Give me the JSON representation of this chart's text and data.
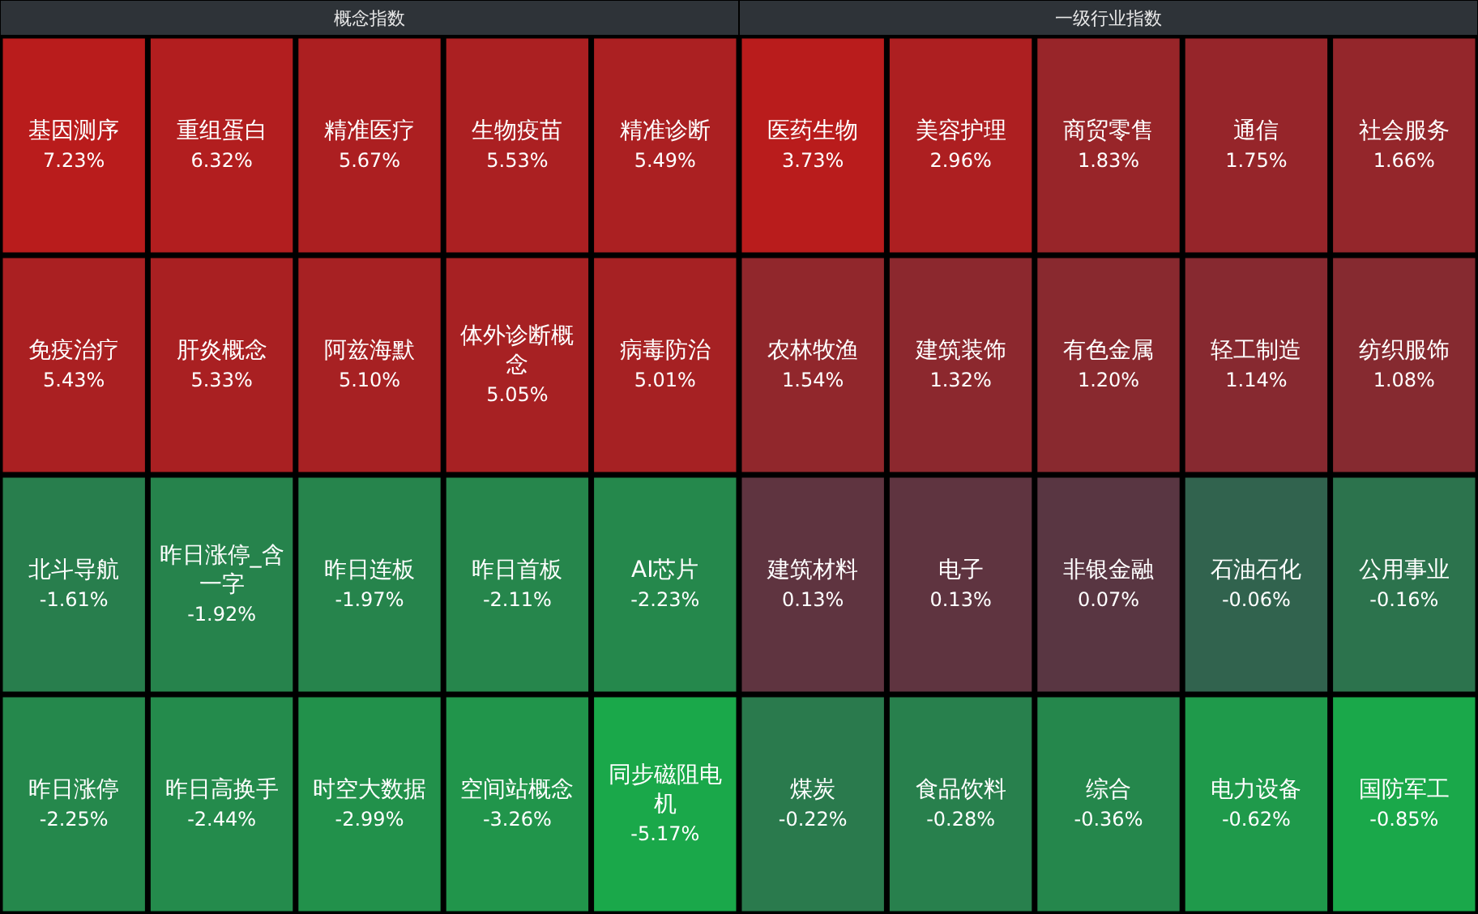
{
  "chart_data": [
    {
      "type": "other",
      "title": "概念指数",
      "categories": [
        "基因测序",
        "重组蛋白",
        "精准医疗",
        "生物疫苗",
        "精准诊断",
        "免疫治疗",
        "肝炎概念",
        "阿兹海默",
        "体外诊断概念",
        "病毒防治",
        "北斗导航",
        "昨日涨停_含一字",
        "昨日连板",
        "昨日首板",
        "AI芯片",
        "昨日涨停",
        "昨日高换手",
        "时空大数据",
        "空间站概念",
        "同步磁阻电机"
      ],
      "values": [
        7.23,
        6.32,
        5.67,
        5.53,
        5.49,
        5.43,
        5.33,
        5.1,
        5.05,
        5.01,
        -1.61,
        -1.92,
        -1.97,
        -2.11,
        -2.23,
        -2.25,
        -2.44,
        -2.99,
        -3.26,
        -5.17
      ],
      "value_labels": [
        "7.23%",
        "6.32%",
        "5.67%",
        "5.53%",
        "5.49%",
        "5.43%",
        "5.33%",
        "5.10%",
        "5.05%",
        "5.01%",
        "-1.61%",
        "-1.92%",
        "-1.97%",
        "-2.11%",
        "-2.23%",
        "-2.25%",
        "-2.44%",
        "-2.99%",
        "-3.26%",
        "-5.17%"
      ]
    },
    {
      "type": "other",
      "title": "一级行业指数",
      "categories": [
        "医药生物",
        "美容护理",
        "商贸零售",
        "通信",
        "社会服务",
        "农林牧渔",
        "建筑装饰",
        "有色金属",
        "轻工制造",
        "纺织服饰",
        "建筑材料",
        "电子",
        "非银金融",
        "石油石化",
        "公用事业",
        "煤炭",
        "食品饮料",
        "综合",
        "电力设备",
        "国防军工"
      ],
      "values": [
        3.73,
        2.96,
        1.83,
        1.75,
        1.66,
        1.54,
        1.32,
        1.2,
        1.14,
        1.08,
        0.13,
        0.13,
        0.07,
        -0.06,
        -0.16,
        -0.22,
        -0.28,
        -0.36,
        -0.62,
        -0.85
      ],
      "value_labels": [
        "3.73%",
        "2.96%",
        "1.83%",
        "1.75%",
        "1.66%",
        "1.54%",
        "1.32%",
        "1.20%",
        "1.14%",
        "1.08%",
        "0.13%",
        "0.13%",
        "0.07%",
        "-0.06%",
        "-0.16%",
        "-0.22%",
        "-0.28%",
        "-0.36%",
        "-0.62%",
        "-0.85%"
      ]
    }
  ]
}
